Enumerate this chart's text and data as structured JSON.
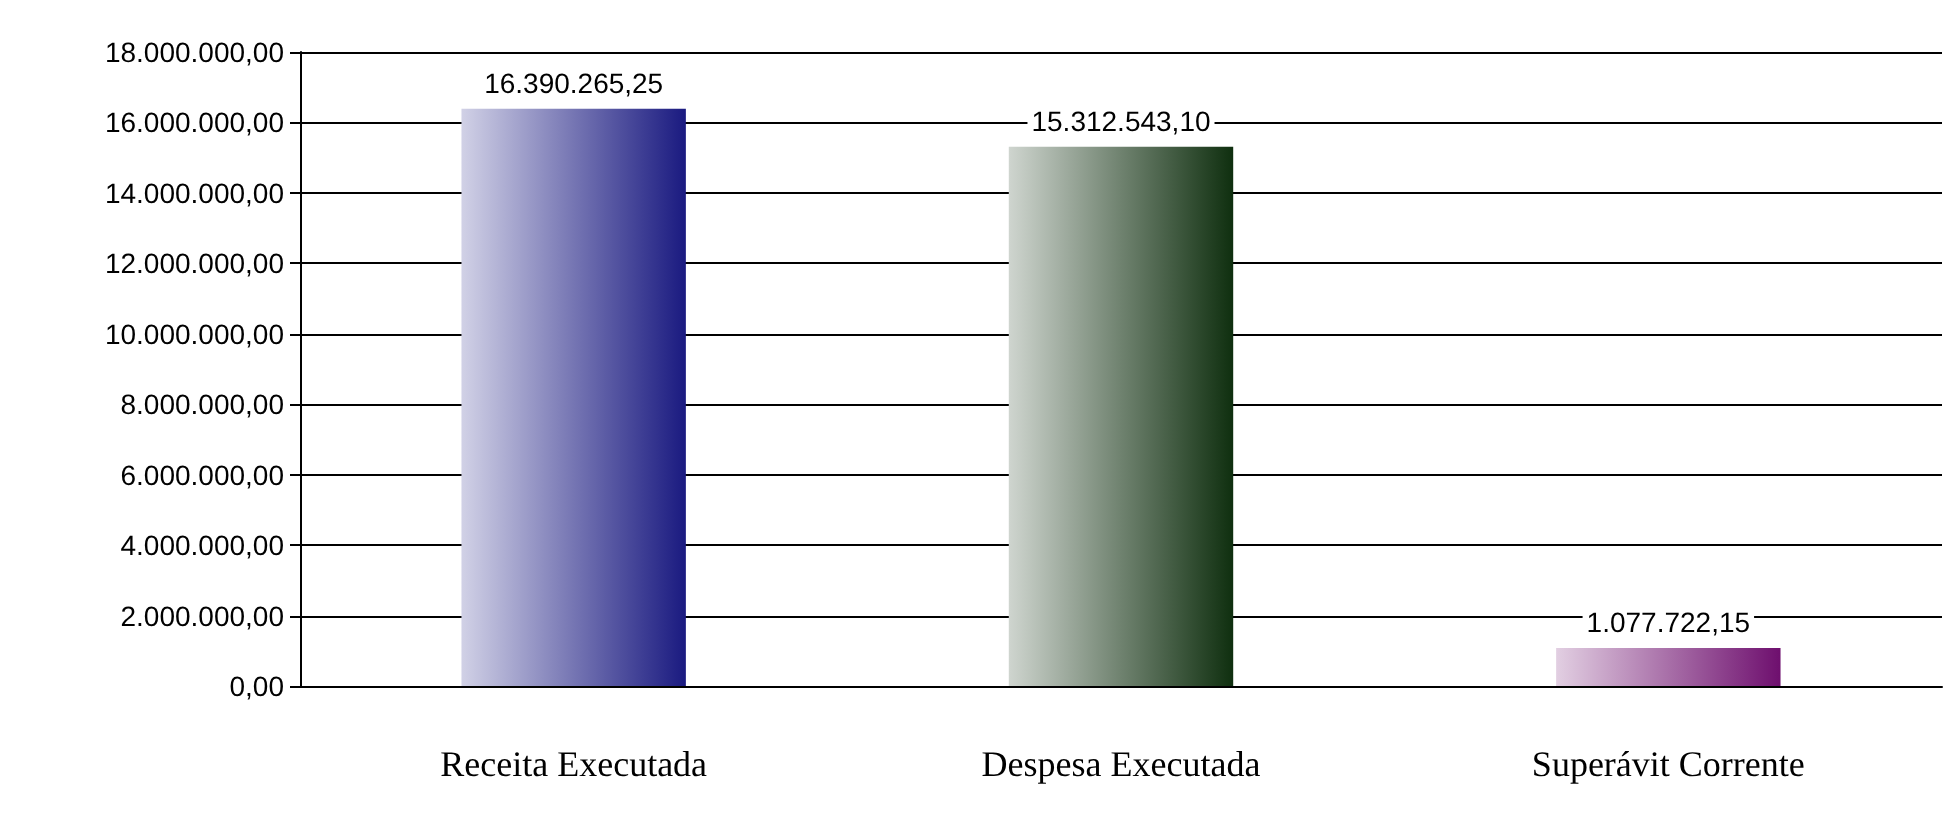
{
  "chart_data": {
    "type": "bar",
    "categories": [
      "Receita Executada",
      "Despesa Executada",
      "Superávit Corrente"
    ],
    "values": [
      16390265.25,
      15312543.1,
      1077722.15
    ],
    "colors": [
      "#1a1a80",
      "#0f2f0f",
      "#6e0f6e"
    ],
    "value_labels": [
      "16.390.265,25",
      "15.312.543,10",
      "1.077.722,15"
    ],
    "ylim": [
      0,
      18000000
    ],
    "yticks": [
      {
        "value": 0,
        "label": "0,00"
      },
      {
        "value": 2000000,
        "label": "2.000.000,00"
      },
      {
        "value": 4000000,
        "label": "4.000.000,00"
      },
      {
        "value": 6000000,
        "label": "6.000.000,00"
      },
      {
        "value": 8000000,
        "label": "8.000.000,00"
      },
      {
        "value": 10000000,
        "label": "10.000.000,00"
      },
      {
        "value": 12000000,
        "label": "12.000.000,00"
      },
      {
        "value": 14000000,
        "label": "14.000.000,00"
      },
      {
        "value": 16000000,
        "label": "16.000.000,00"
      },
      {
        "value": 18000000,
        "label": "18.000.000,00"
      }
    ],
    "grid": "y"
  }
}
